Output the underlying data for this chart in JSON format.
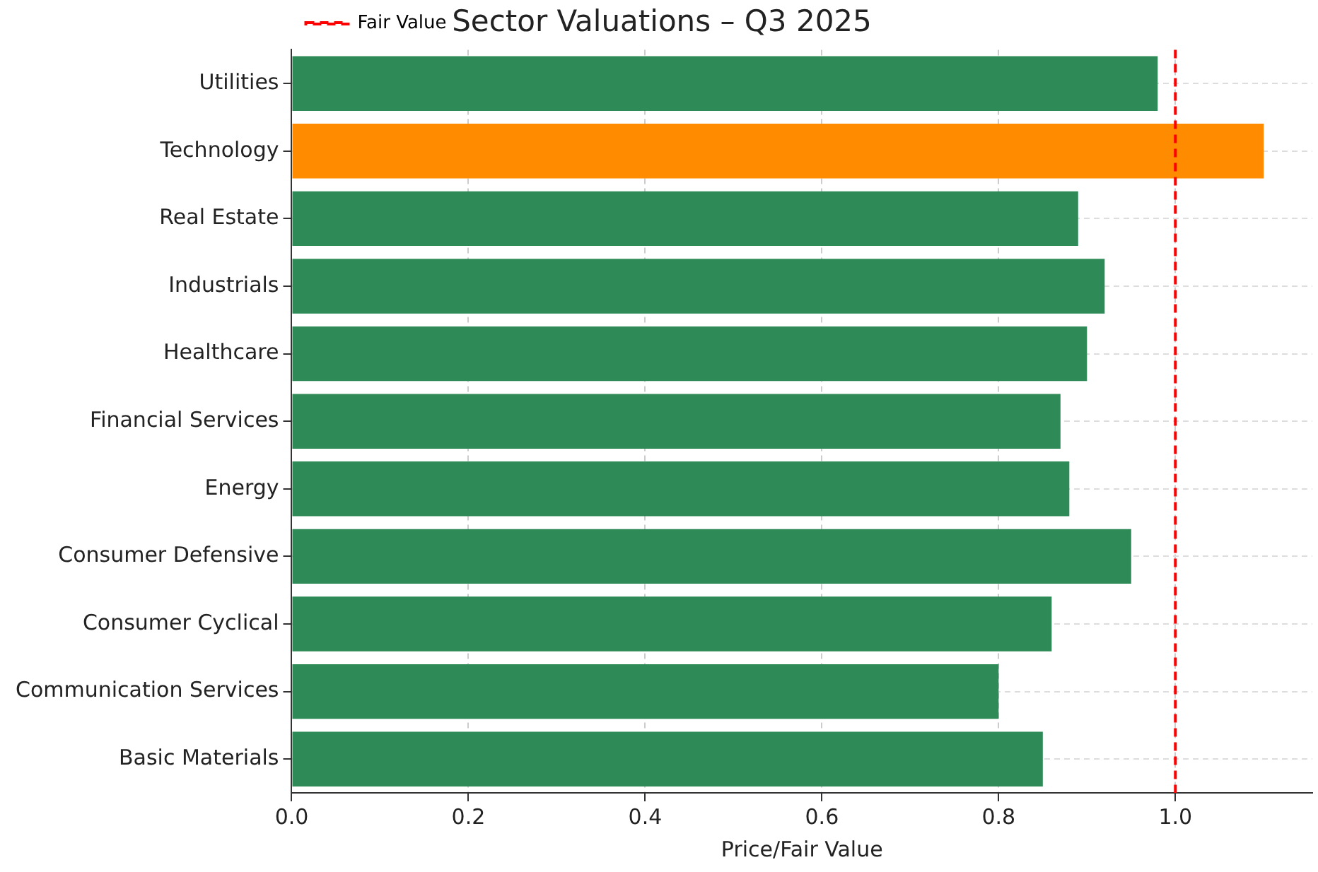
{
  "chart_data": {
    "type": "bar",
    "orientation": "horizontal",
    "title": "Sector Valuations – Q3 2025",
    "xlabel": "Price/Fair Value",
    "categories": [
      "Utilities",
      "Technology",
      "Real Estate",
      "Industrials",
      "Healthcare",
      "Financial Services",
      "Energy",
      "Consumer Defensive",
      "Consumer Cyclical",
      "Communication Services",
      "Basic Materials"
    ],
    "values": [
      0.98,
      1.1,
      0.89,
      0.92,
      0.9,
      0.87,
      0.88,
      0.95,
      0.86,
      0.8,
      0.85
    ],
    "colors": [
      "#2e8b57",
      "#ff8c00",
      "#2e8b57",
      "#2e8b57",
      "#2e8b57",
      "#2e8b57",
      "#2e8b57",
      "#2e8b57",
      "#2e8b57",
      "#2e8b57",
      "#2e8b57"
    ],
    "xlim": [
      0,
      1.155
    ],
    "xticks": [
      {
        "value": 0,
        "label": "0.0"
      },
      {
        "value": 0.2,
        "label": "0.2"
      },
      {
        "value": 0.4,
        "label": "0.4"
      },
      {
        "value": 0.6,
        "label": "0.6"
      },
      {
        "value": 0.8,
        "label": "0.8"
      },
      {
        "value": 1,
        "label": "1.0"
      }
    ],
    "ref_lines": [
      {
        "axis": "x",
        "value": 1.0,
        "label": "Fair Value",
        "color": "#ff0000",
        "line_style": "dashed"
      }
    ],
    "grid": true,
    "legend": "top left"
  }
}
